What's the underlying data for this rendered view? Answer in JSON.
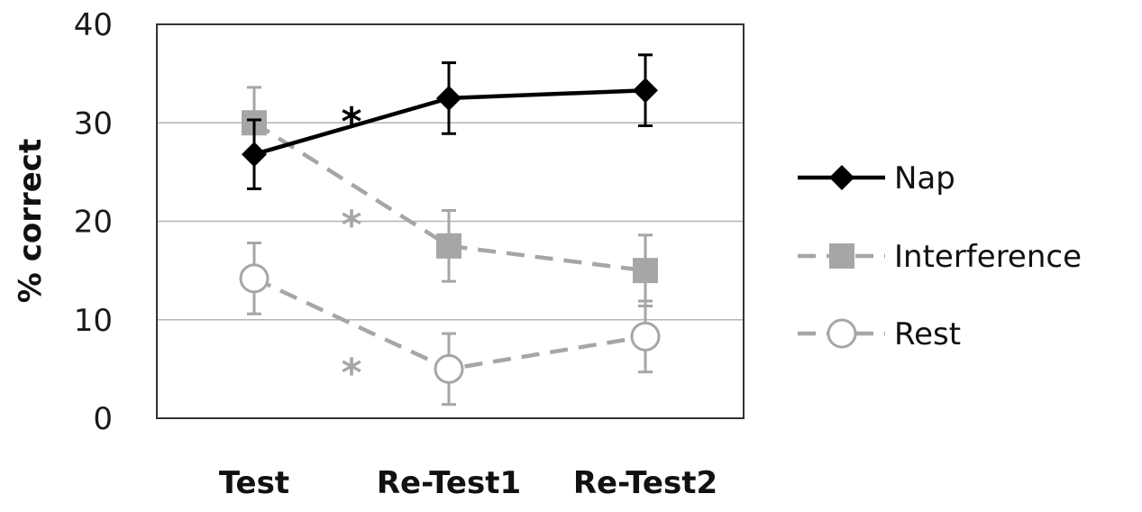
{
  "chart_data": {
    "type": "line",
    "ylabel": "% correct",
    "xlabel": "",
    "ylim": [
      0,
      40
    ],
    "yticks": [
      "0",
      "10",
      "20",
      "30",
      "40"
    ],
    "categories": [
      "Test",
      "Re-Test1",
      "Re-Test2"
    ],
    "grid": "horizontal",
    "legend_position": "right",
    "series": [
      {
        "name": "Nap",
        "values": [
          26.8,
          32.5,
          33.3
        ],
        "errors": [
          3.5,
          3.6,
          3.6
        ],
        "color": "#000000",
        "line": "solid",
        "marker": "diamond-filled"
      },
      {
        "name": "Interference",
        "values": [
          30.0,
          17.5,
          15.0
        ],
        "errors": [
          3.6,
          3.6,
          3.6
        ],
        "color": "#a6a6a6",
        "line": "dashed",
        "marker": "square-filled"
      },
      {
        "name": "Rest",
        "values": [
          14.2,
          5.0,
          8.3
        ],
        "errors": [
          3.6,
          3.6,
          3.6
        ],
        "color": "#a6a6a6",
        "line": "dashed",
        "marker": "circle-open"
      }
    ],
    "annotations": [
      {
        "text": "*",
        "x": 0.5,
        "y": 31.5,
        "color": "#000000"
      },
      {
        "text": "*",
        "x": 0.5,
        "y": 21.0,
        "color": "#a6a6a6"
      },
      {
        "text": "*",
        "x": 0.5,
        "y": 6.0,
        "color": "#a6a6a6"
      }
    ]
  }
}
